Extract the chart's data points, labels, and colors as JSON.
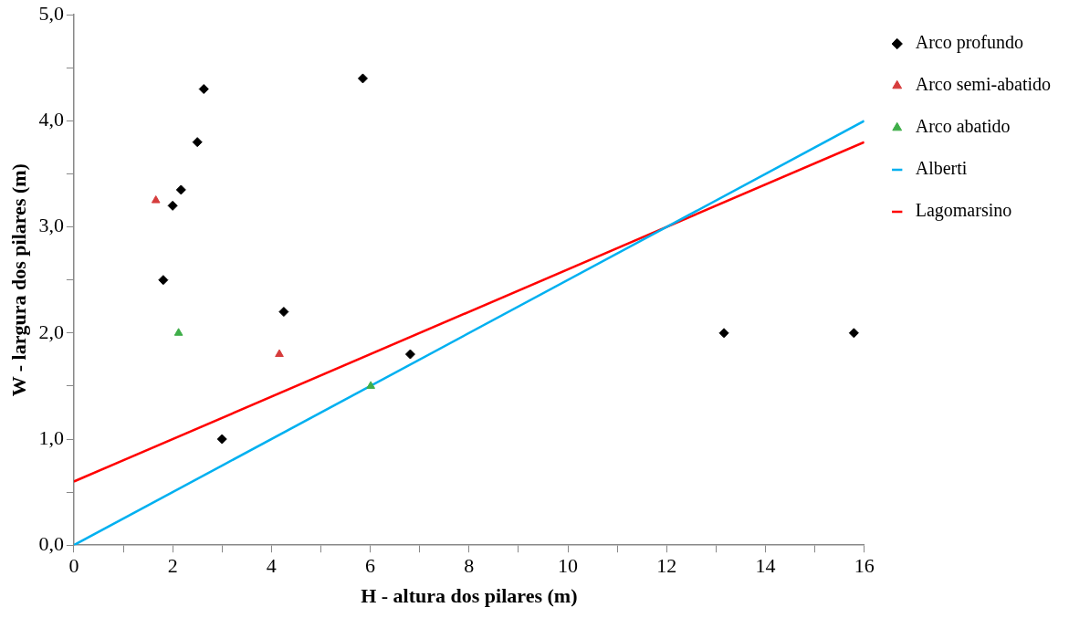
{
  "chart_data": {
    "type": "scatter",
    "xlabel": "H - altura dos pilares (m)",
    "ylabel": "W - largura dos pilares (m)",
    "xlim": [
      0,
      16
    ],
    "xticks": [
      0,
      {
        "value": 1,
        "label": null
      },
      2,
      {
        "value": 3,
        "label": null
      },
      4,
      {
        "value": 5,
        "label": null
      },
      6,
      {
        "value": 7,
        "label": null
      },
      8,
      {
        "value": 9,
        "label": null
      },
      10,
      {
        "value": 11,
        "label": null
      },
      12,
      {
        "value": 13,
        "label": null
      },
      14,
      {
        "value": 15,
        "label": null
      },
      16
    ],
    "ylim": [
      0,
      5
    ],
    "yticks": [
      {
        "value": 0,
        "label": "0,0"
      },
      {
        "value": 0.5,
        "label": null
      },
      {
        "value": 1,
        "label": "1,0"
      },
      {
        "value": 1.5,
        "label": null
      },
      {
        "value": 2,
        "label": "2,0"
      },
      {
        "value": 2.5,
        "label": null
      },
      {
        "value": 3,
        "label": "3,0"
      },
      {
        "value": 3.5,
        "label": null
      },
      {
        "value": 4,
        "label": "4,0"
      },
      {
        "value": 4.5,
        "label": null
      },
      {
        "value": 5,
        "label": "5,0"
      }
    ],
    "grid": false,
    "legend": "right",
    "series": [
      {
        "name": "Arco profundo",
        "color": "#000000",
        "marker": "diamond",
        "x": [
          2.63,
          5.85,
          2.5,
          2.17,
          2.0,
          1.81,
          4.25,
          6.81,
          3.0,
          13.16,
          15.79
        ],
        "values": [
          4.3,
          4.4,
          3.8,
          3.35,
          3.2,
          2.5,
          2.2,
          1.8,
          1.0,
          2.0,
          2.0
        ]
      },
      {
        "name": "Arco semi-abatido",
        "color": "#d63c3c",
        "marker": "triangle",
        "x": [
          1.66,
          4.16
        ],
        "values": [
          3.25,
          1.8
        ]
      },
      {
        "name": "Arco abatido",
        "color": "#3fae49",
        "marker": "triangle",
        "x": [
          2.12,
          6.01
        ],
        "values": [
          2.0,
          1.5
        ]
      },
      {
        "name": "Alberti",
        "type": "line",
        "color": "#00b0f0",
        "marker": "none",
        "x": [
          0,
          16
        ],
        "values": [
          0,
          4
        ]
      },
      {
        "name": "Lagomarsino",
        "type": "line",
        "color": "#ff0000",
        "marker": "none",
        "x": [
          0,
          16
        ],
        "values": [
          0.6,
          3.8
        ]
      }
    ]
  }
}
